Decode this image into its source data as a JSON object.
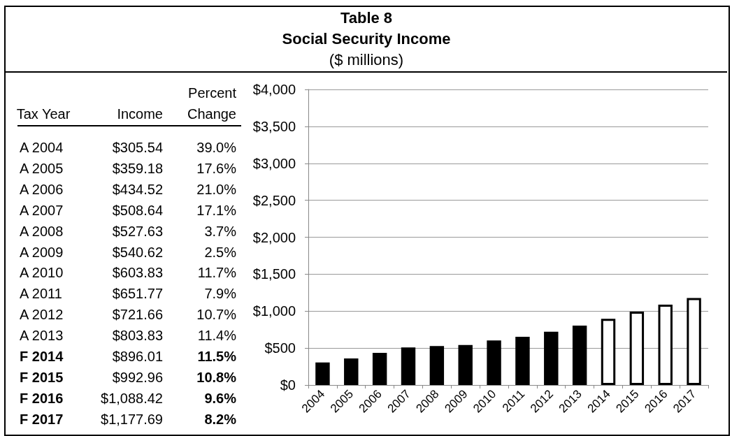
{
  "chart_data": [
    {
      "type": "other",
      "title": "Table 8",
      "subtitle": "Social Security Income",
      "annotations": [
        "($ millions)",
        "Tax Year",
        "Income",
        "Percent Change",
        "A 2004",
        "$305.54",
        "39.0%",
        "A 2005",
        "$359.18",
        "17.6%",
        "A 2006",
        "$434.52",
        "21.0%",
        "A 2007",
        "$508.64",
        "17.1%",
        "A 2008",
        "$527.63",
        "3.7%",
        "A 2009",
        "$540.62",
        "2.5%",
        "A 2010",
        "$603.83",
        "11.7%",
        "A 2011",
        "$651.77",
        "7.9%",
        "A 2012",
        "$721.66",
        "10.7%",
        "A 2013",
        "$803.83",
        "11.4%",
        "F 2014",
        "$896.01",
        "11.5%",
        "F 2015",
        "$992.96",
        "10.8%",
        "F 2016",
        "$1,088.42",
        "9.6%",
        "F 2017",
        "$1,177.69",
        "8.2%"
      ]
    },
    {
      "type": "bar",
      "categories": [
        "2004",
        "2005",
        "2006",
        "2007",
        "2008",
        "2009",
        "2010",
        "2011",
        "2012",
        "2013",
        "2014",
        "2015",
        "2016",
        "2017"
      ],
      "values": [
        305.54,
        359.18,
        434.52,
        508.64,
        527.63,
        540.62,
        603.83,
        651.77,
        721.66,
        803.83,
        896.01,
        992.96,
        1088.42,
        1177.69
      ],
      "colors": [
        "#000000",
        "#000000",
        "#000000",
        "#000000",
        "#000000",
        "#000000",
        "#000000",
        "#000000",
        "#000000",
        "#000000",
        "#ffffff",
        "#ffffff",
        "#ffffff",
        "#ffffff"
      ],
      "ylim": [
        0,
        4000
      ],
      "yticks": [
        {
          "value": 0,
          "label": "$0"
        },
        {
          "value": 500,
          "label": "$500"
        },
        {
          "value": 1000,
          "label": "$1,000"
        },
        {
          "value": 1500,
          "label": "$1,500"
        },
        {
          "value": 2000,
          "label": "$2,000"
        },
        {
          "value": 2500,
          "label": "$2,500"
        },
        {
          "value": 3000,
          "label": "$3,000"
        },
        {
          "value": 3500,
          "label": "$3,500"
        },
        {
          "value": 4000,
          "label": "$4,000"
        }
      ],
      "grid": "y"
    }
  ]
}
